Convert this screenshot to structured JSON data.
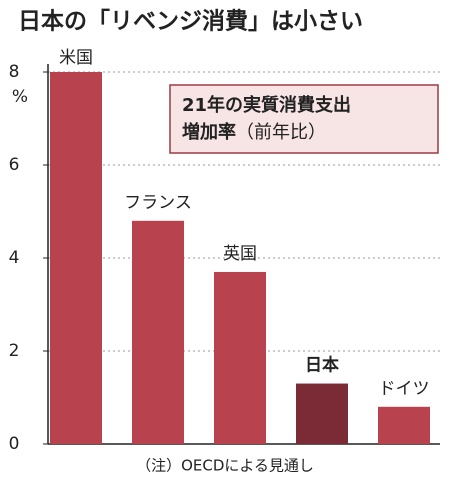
{
  "chart_data": {
    "type": "bar",
    "title": "日本の「リベンジ消費」は小さい",
    "y_unit": "%",
    "annotation": {
      "line1": "21年の実質消費支出",
      "line2_bold": "増加率",
      "line2": "（前年比）"
    },
    "note": "（注）OECDによる見通し",
    "categories": [
      "米国",
      "フランス",
      "英国",
      "日本",
      "ドイツ"
    ],
    "values": [
      8,
      4.8,
      3.7,
      1.3,
      0.8
    ],
    "colors": [
      "#b8434f",
      "#b8434f",
      "#b8434f",
      "#7b2b36",
      "#b8434f"
    ],
    "ylim": [
      0,
      8
    ],
    "yticks": [
      0,
      2,
      4,
      6,
      8
    ],
    "grid": true
  }
}
